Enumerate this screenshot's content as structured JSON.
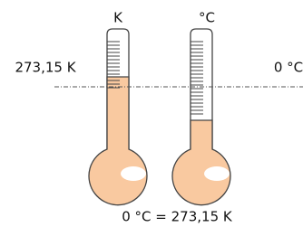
{
  "thermometers": [
    {
      "unit": "K"
    },
    {
      "unit": "°C"
    }
  ],
  "left_label": "273,15 K",
  "right_label": "0 °C",
  "caption": "0 °C = 273,15 K"
}
